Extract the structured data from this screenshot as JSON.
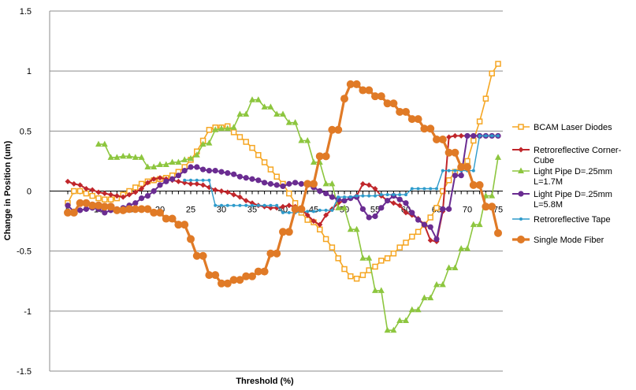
{
  "chart_data": {
    "type": "line",
    "title": "",
    "xlabel": "Threshold (%)",
    "ylabel": "Change in Position  (um)",
    "xlim": [
      5,
      75
    ],
    "ylim": [
      -1.5,
      1.5
    ],
    "xticks": [
      5,
      10,
      15,
      20,
      25,
      30,
      35,
      40,
      45,
      50,
      55,
      60,
      65,
      70,
      75
    ],
    "yticks": [
      -1.5,
      -1,
      -0.5,
      0,
      0.5,
      1,
      1.5
    ],
    "grid": "horizontal",
    "legend": "right",
    "series": [
      {
        "name": "BCAM Laser Diodes",
        "color": "#F5A623",
        "marker": "square",
        "x": [
          5,
          6,
          7,
          8,
          9,
          10,
          11,
          12,
          13,
          14,
          15,
          16,
          17,
          18,
          19,
          20,
          21,
          22,
          23,
          24,
          25,
          26,
          27,
          28,
          29,
          30,
          31,
          32,
          33,
          34,
          35,
          36,
          37,
          38,
          39,
          40,
          41,
          42,
          43,
          44,
          45,
          46,
          47,
          48,
          49,
          50,
          51,
          52,
          53,
          54,
          55,
          56,
          57,
          58,
          59,
          60,
          61,
          62,
          63,
          64,
          65,
          66,
          67,
          68,
          69,
          70,
          71,
          72,
          73,
          74,
          75
        ],
        "y": [
          -0.1,
          0,
          0,
          -0.02,
          -0.04,
          -0.06,
          -0.07,
          -0.07,
          -0.06,
          -0.03,
          0,
          0.03,
          0.06,
          0.08,
          0.09,
          0.1,
          0.11,
          0.13,
          0.16,
          0.2,
          0.26,
          0.33,
          0.42,
          0.51,
          0.53,
          0.53,
          0.54,
          0.49,
          0.45,
          0.41,
          0.36,
          0.3,
          0.24,
          0.18,
          0.12,
          0.06,
          -0.02,
          -0.1,
          -0.18,
          -0.24,
          -0.26,
          -0.32,
          -0.4,
          -0.47,
          -0.56,
          -0.65,
          -0.71,
          -0.73,
          -0.7,
          -0.66,
          -0.63,
          -0.58,
          -0.56,
          -0.52,
          -0.47,
          -0.43,
          -0.38,
          -0.34,
          -0.28,
          -0.22,
          -0.14,
          0,
          0.09,
          0.16,
          0.2,
          0.25,
          0.42,
          0.58,
          0.77,
          0.98,
          1.06
        ]
      },
      {
        "name": "Retroreflective Corner-Cube",
        "color": "#C0262B",
        "marker": "diamond",
        "x": [
          5,
          6,
          7,
          8,
          9,
          10,
          11,
          12,
          13,
          14,
          15,
          16,
          17,
          18,
          19,
          20,
          21,
          22,
          23,
          24,
          25,
          26,
          27,
          28,
          29,
          30,
          31,
          32,
          33,
          34,
          35,
          36,
          37,
          38,
          39,
          40,
          41,
          42,
          43,
          44,
          45,
          46,
          47,
          48,
          49,
          50,
          51,
          52,
          53,
          54,
          55,
          56,
          57,
          58,
          59,
          60,
          61,
          62,
          63,
          64,
          65,
          66,
          67,
          68,
          69,
          70,
          71,
          72,
          73,
          74,
          75
        ],
        "y": [
          0.08,
          0.06,
          0.05,
          0.02,
          0.01,
          -0.01,
          -0.02,
          -0.03,
          -0.04,
          -0.05,
          -0.03,
          -0.01,
          0.02,
          0.07,
          0.1,
          0.11,
          0.1,
          0.09,
          0.08,
          0.07,
          0.06,
          0.06,
          0.05,
          0.03,
          0.01,
          0,
          -0.01,
          -0.03,
          -0.05,
          -0.08,
          -0.1,
          -0.12,
          -0.13,
          -0.14,
          -0.14,
          -0.13,
          -0.12,
          -0.13,
          -0.15,
          -0.2,
          -0.25,
          -0.28,
          -0.2,
          -0.15,
          -0.1,
          -0.08,
          -0.06,
          -0.04,
          0.06,
          0.05,
          0.02,
          -0.04,
          -0.08,
          -0.1,
          -0.12,
          -0.18,
          -0.2,
          -0.23,
          -0.28,
          -0.41,
          -0.42,
          -0.17,
          0.45,
          0.46,
          0.46,
          0.46,
          0.46,
          0.46,
          0.46,
          0.46,
          0.46
        ]
      },
      {
        "name": "Light Pipe D=.25mm L=1.7M",
        "color": "#8DC63F",
        "marker": "triangle",
        "x": [
          10,
          11,
          12,
          13,
          14,
          15,
          16,
          17,
          18,
          19,
          20,
          21,
          22,
          23,
          24,
          25,
          26,
          27,
          28,
          29,
          30,
          31,
          32,
          33,
          34,
          35,
          36,
          37,
          38,
          39,
          40,
          41,
          42,
          43,
          44,
          45,
          46,
          47,
          48,
          49,
          50,
          51,
          52,
          53,
          54,
          55,
          56,
          57,
          58,
          59,
          60,
          61,
          62,
          63,
          64,
          65,
          66,
          67,
          68,
          69,
          70,
          71,
          72,
          73,
          74,
          75
        ],
        "y": [
          0.39,
          0.39,
          0.28,
          0.28,
          0.29,
          0.29,
          0.28,
          0.28,
          0.2,
          0.2,
          0.22,
          0.22,
          0.24,
          0.24,
          0.26,
          0.27,
          0.3,
          0.39,
          0.4,
          0.51,
          0.52,
          0.52,
          0.53,
          0.64,
          0.64,
          0.76,
          0.76,
          0.7,
          0.7,
          0.64,
          0.64,
          0.57,
          0.57,
          0.42,
          0.42,
          0.24,
          0.24,
          0.06,
          0.06,
          -0.14,
          -0.14,
          -0.32,
          -0.32,
          -0.56,
          -0.56,
          -0.83,
          -0.83,
          -1.16,
          -1.16,
          -1.08,
          -1.08,
          -0.99,
          -0.99,
          -0.89,
          -0.89,
          -0.78,
          -0.78,
          -0.64,
          -0.64,
          -0.48,
          -0.48,
          -0.28,
          -0.28,
          -0.04,
          -0.04,
          0.28
        ]
      },
      {
        "name": "Light Pipe D=.25mm L=5.8M",
        "color": "#6A2C91",
        "marker": "circle",
        "x": [
          5,
          6,
          7,
          8,
          9,
          10,
          11,
          12,
          13,
          14,
          15,
          16,
          17,
          18,
          19,
          20,
          21,
          22,
          23,
          24,
          25,
          26,
          27,
          28,
          29,
          30,
          31,
          32,
          33,
          34,
          35,
          36,
          37,
          38,
          39,
          40,
          41,
          42,
          43,
          44,
          45,
          46,
          47,
          48,
          49,
          50,
          51,
          52,
          53,
          54,
          55,
          56,
          57,
          58,
          59,
          60,
          61,
          62,
          63,
          64,
          65,
          66,
          67,
          68,
          69,
          70,
          71,
          72,
          73,
          74,
          75
        ],
        "y": [
          -0.12,
          -0.17,
          -0.16,
          -0.15,
          -0.14,
          -0.15,
          -0.18,
          -0.16,
          -0.15,
          -0.14,
          -0.12,
          -0.1,
          -0.06,
          -0.04,
          0,
          0.05,
          0.08,
          0.1,
          0.13,
          0.17,
          0.2,
          0.2,
          0.18,
          0.17,
          0.17,
          0.16,
          0.15,
          0.14,
          0.12,
          0.11,
          0.1,
          0.09,
          0.07,
          0.06,
          0.05,
          0.04,
          0.06,
          0.07,
          0.06,
          0.05,
          0.03,
          0,
          -0.02,
          -0.05,
          -0.07,
          -0.08,
          -0.06,
          -0.05,
          -0.15,
          -0.22,
          -0.21,
          -0.14,
          -0.08,
          -0.04,
          -0.07,
          -0.1,
          -0.18,
          -0.24,
          -0.28,
          -0.3,
          -0.4,
          -0.15,
          -0.15,
          0.13,
          0.13,
          0.46,
          0.46,
          0.46,
          0.46,
          0.46,
          0.46
        ]
      },
      {
        "name": "Retroreflective Tape",
        "color": "#2E9BCB",
        "marker": "dot",
        "x": [
          24,
          25,
          26,
          27,
          28,
          29,
          30,
          31,
          32,
          33,
          34,
          35,
          36,
          37,
          38,
          39,
          40,
          41,
          42,
          43,
          44,
          45,
          46,
          47,
          48,
          49,
          50,
          51,
          52,
          53,
          54,
          55,
          56,
          57,
          58,
          59,
          60,
          61,
          62,
          63,
          64,
          65,
          66,
          67,
          68,
          69,
          70,
          71,
          72,
          73,
          74,
          75
        ],
        "y": [
          0.09,
          0.09,
          0.09,
          0.09,
          0.09,
          -0.12,
          -0.12,
          -0.12,
          -0.12,
          -0.12,
          -0.12,
          -0.12,
          -0.12,
          -0.12,
          -0.12,
          -0.12,
          -0.18,
          -0.18,
          -0.18,
          -0.17,
          -0.17,
          -0.17,
          -0.16,
          -0.16,
          -0.16,
          -0.05,
          -0.05,
          -0.05,
          -0.04,
          -0.04,
          -0.04,
          -0.04,
          -0.03,
          -0.03,
          -0.03,
          -0.03,
          -0.03,
          0.02,
          0.02,
          0.02,
          0.02,
          0.02,
          0.17,
          0.17,
          0.17,
          0.17,
          0.17,
          0.17,
          0.46,
          0.46,
          0.46,
          0.46
        ]
      },
      {
        "name": "Single Mode Fiber",
        "color": "#E07A26",
        "marker": "bigcircle",
        "x": [
          5,
          6,
          7,
          8,
          9,
          10,
          11,
          12,
          13,
          14,
          15,
          16,
          17,
          18,
          19,
          20,
          21,
          22,
          23,
          24,
          25,
          26,
          27,
          28,
          29,
          30,
          31,
          32,
          33,
          34,
          35,
          36,
          37,
          38,
          39,
          40,
          41,
          42,
          43,
          44,
          45,
          46,
          47,
          48,
          49,
          50,
          51,
          52,
          53,
          54,
          55,
          56,
          57,
          58,
          59,
          60,
          61,
          62,
          63,
          64,
          65,
          66,
          67,
          68,
          69,
          70,
          71,
          72,
          73,
          74,
          75
        ],
        "y": [
          -0.18,
          -0.18,
          -0.1,
          -0.1,
          -0.12,
          -0.12,
          -0.13,
          -0.13,
          -0.16,
          -0.16,
          -0.15,
          -0.15,
          -0.15,
          -0.15,
          -0.18,
          -0.18,
          -0.23,
          -0.23,
          -0.28,
          -0.28,
          -0.4,
          -0.54,
          -0.54,
          -0.7,
          -0.7,
          -0.77,
          -0.77,
          -0.74,
          -0.74,
          -0.71,
          -0.71,
          -0.67,
          -0.67,
          -0.52,
          -0.52,
          -0.34,
          -0.34,
          -0.15,
          -0.15,
          0.06,
          0.06,
          0.29,
          0.29,
          0.51,
          0.51,
          0.77,
          0.89,
          0.89,
          0.84,
          0.84,
          0.79,
          0.79,
          0.73,
          0.73,
          0.66,
          0.66,
          0.6,
          0.6,
          0.52,
          0.52,
          0.43,
          0.43,
          0.32,
          0.32,
          0.2,
          0.2,
          0.05,
          0.05,
          -0.13,
          -0.13,
          -0.35
        ]
      }
    ]
  }
}
